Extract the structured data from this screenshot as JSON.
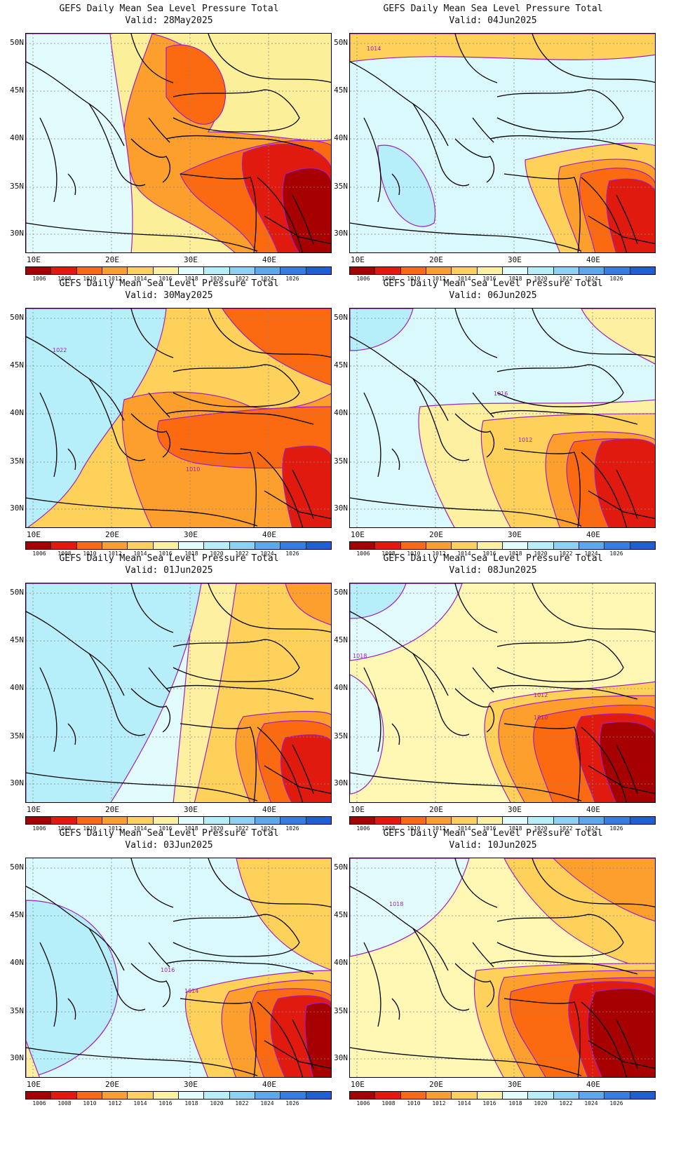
{
  "title_line": "GEFS Daily Mean Sea Level Pressure Total",
  "panels": [
    {
      "valid": "Valid: 28May2025",
      "base": "#fcef9a",
      "pattern": 0
    },
    {
      "valid": "Valid: 04Jun2025",
      "base": "#d9f9fc",
      "pattern": 1
    },
    {
      "valid": "Valid: 30May2025",
      "base": "#fdd15a",
      "pattern": 2
    },
    {
      "valid": "Valid: 06Jun2025",
      "base": "#d9f9fc",
      "pattern": 3
    },
    {
      "valid": "Valid: 01Jun2025",
      "base": "#b6eef9",
      "pattern": 4
    },
    {
      "valid": "Valid: 08Jun2025",
      "base": "#fff7b4",
      "pattern": 5
    },
    {
      "valid": "Valid: 03Jun2025",
      "base": "#d9f9fc",
      "pattern": 6
    },
    {
      "valid": "Valid: 10Jun2025",
      "base": "#fff7b4",
      "pattern": 7
    }
  ],
  "lat_labels": [
    "50N",
    "45N",
    "40N",
    "35N",
    "30N"
  ],
  "lon_labels": [
    "10E",
    "20E",
    "30E",
    "40E"
  ],
  "colorbar": {
    "ticks": [
      "1006",
      "1008",
      "1010",
      "1012",
      "1014",
      "1016",
      "1018",
      "1020",
      "1022",
      "1024",
      "1026"
    ],
    "colors": [
      "#a70000",
      "#e11a0f",
      "#fb6a10",
      "#fc9f2d",
      "#fdd15a",
      "#fdf0a0",
      "#e2fbfd",
      "#b6eef9",
      "#8fd0f5",
      "#5aa8ef",
      "#2f7fe6",
      "#1f5fd6"
    ]
  },
  "contour_labels": [
    {
      "panel": 1,
      "text": "1014"
    },
    {
      "panel": 2,
      "text": "1022"
    },
    {
      "panel": 2,
      "text": "1010"
    },
    {
      "panel": 3,
      "text": "1016"
    },
    {
      "panel": 3,
      "text": "1012"
    },
    {
      "panel": 5,
      "text": "1018"
    },
    {
      "panel": 5,
      "text": "1012"
    },
    {
      "panel": 5,
      "text": "1010"
    },
    {
      "panel": 6,
      "text": "1016"
    },
    {
      "panel": 6,
      "text": "1014"
    },
    {
      "panel": 7,
      "text": "1018"
    }
  ],
  "colors": {
    "contour": "#a020c0",
    "coast": "#000000",
    "grid": "#888888"
  }
}
